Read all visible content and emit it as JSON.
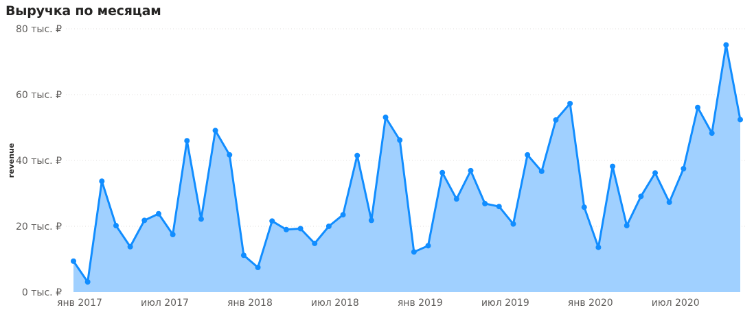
{
  "title": "Выручка по месяцам",
  "chart_data": {
    "type": "area",
    "title": "Выручка по месяцам",
    "xlabel": "",
    "ylabel": "revenue",
    "ylim": [
      0,
      80000
    ],
    "y_ticks": [
      0,
      20000,
      40000,
      60000,
      80000
    ],
    "y_tick_labels": [
      "0 тыс. ₽",
      "20 тыс. ₽",
      "40 тыс. ₽",
      "60 тыс. ₽",
      "80 тыс. ₽"
    ],
    "x_tick_labels": [
      {
        "index": 0,
        "label": "янв 2017"
      },
      {
        "index": 6,
        "label": "июл 2017"
      },
      {
        "index": 12,
        "label": "янв 2018"
      },
      {
        "index": 18,
        "label": "июл 2018"
      },
      {
        "index": 24,
        "label": "янв 2019"
      },
      {
        "index": 30,
        "label": "июл 2019"
      },
      {
        "index": 36,
        "label": "янв 2020"
      },
      {
        "index": 42,
        "label": "июл 2020"
      }
    ],
    "grid": true,
    "colors": {
      "line": "#118dff",
      "fill": "#a0d0ff",
      "marker": "#118dff",
      "grid": "#e1dfdd"
    },
    "series": [
      {
        "values": [
          9400,
          3100,
          33700,
          20200,
          13800,
          21800,
          23800,
          17500,
          46000,
          22200,
          49100,
          41700,
          11200,
          7500,
          21600,
          19000,
          19300,
          14800,
          20000,
          23500,
          41500,
          21800,
          53100,
          46200,
          12200,
          14100,
          36300,
          28300,
          36900,
          26900,
          26000,
          20700,
          41700,
          36700,
          52300,
          57300,
          25800,
          13600,
          38200,
          20200,
          29100,
          36200,
          27300,
          37500,
          56100,
          48300,
          75100,
          52400
        ]
      }
    ]
  }
}
